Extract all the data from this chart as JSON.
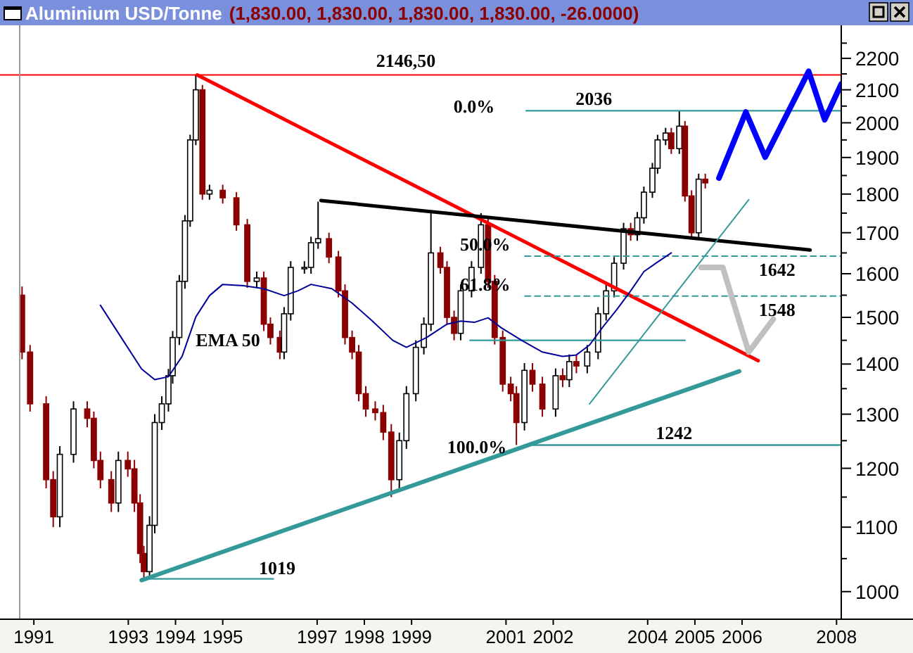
{
  "chart_data": {
    "type": "candlestick",
    "title": "Aluminium USD/Tonne",
    "subtitle": "(1,830.00, 1,830.00, 1,830.00, 1,830.00, -26.0000)",
    "log": true,
    "xlim": [
      1991.2,
      2008.6
    ],
    "ylim": [
      960,
      2310
    ],
    "xticks": [
      {
        "value": 1991.5,
        "label": "1991"
      },
      {
        "value": 1993.5,
        "label": "1993"
      },
      {
        "value": 1994.5,
        "label": "1994"
      },
      {
        "value": 1995.5,
        "label": "1995"
      },
      {
        "value": 1997.5,
        "label": "1997"
      },
      {
        "value": 1998.5,
        "label": "1998"
      },
      {
        "value": 1999.5,
        "label": "1999"
      },
      {
        "value": 2001.5,
        "label": "2001"
      },
      {
        "value": 2002.5,
        "label": "2002"
      },
      {
        "value": 2004.5,
        "label": "2004"
      },
      {
        "value": 2005.5,
        "label": "2005"
      },
      {
        "value": 2006.5,
        "label": "2006"
      },
      {
        "value": 2008.5,
        "label": "2008"
      }
    ],
    "yticks": [
      1000,
      {
        "value": 1050,
        "label": null
      },
      1100,
      {
        "value": 1150,
        "label": null
      },
      1200,
      {
        "value": 1250,
        "label": null
      },
      1300,
      {
        "value": 1350,
        "label": null
      },
      1400,
      {
        "value": 1450,
        "label": null
      },
      1500,
      {
        "value": 1550,
        "label": null
      },
      1600,
      {
        "value": 1650,
        "label": null
      },
      1700,
      {
        "value": 1750,
        "label": null
      },
      1800,
      {
        "value": 1850,
        "label": null
      },
      1900,
      {
        "value": 1950,
        "label": null
      },
      2000,
      {
        "value": 2050,
        "label": null
      },
      2100,
      {
        "value": 2150,
        "label": null
      },
      2200,
      {
        "value": 2250,
        "label": null
      }
    ],
    "x": [
      1991.25,
      1991.42,
      1991.76,
      1991.91,
      1992.05,
      1992.34,
      1992.63,
      1992.77,
      1992.91,
      1993.14,
      1993.29,
      1993.49,
      1993.63,
      1993.75,
      1993.83,
      1993.95,
      1994.06,
      1994.21,
      1994.35,
      1994.44,
      1994.58,
      1994.7,
      1994.81,
      1994.93,
      1995.07,
      1995.22,
      1995.5,
      1995.79,
      1996.02,
      1996.22,
      1996.37,
      1996.51,
      1996.71,
      1996.8,
      1996.94,
      1997.23,
      1997.37,
      1997.52,
      1997.75,
      1997.95,
      1998.09,
      1998.24,
      1998.38,
      1998.53,
      1998.73,
      1998.9,
      1999.07,
      1999.24,
      1999.39,
      1999.59,
      1999.76,
      1999.91,
      2000.11,
      2000.25,
      2000.4,
      2000.54,
      2000.77,
      2000.97,
      2001.12,
      2001.26,
      2001.43,
      2001.6,
      2001.72,
      2001.89,
      2002.06,
      2002.27,
      2002.55,
      2002.7,
      2002.84,
      2002.99,
      2003.22,
      2003.45,
      2003.62,
      2003.79,
      2003.99,
      2004.14,
      2004.28,
      2004.42,
      2004.6,
      2004.71,
      2004.88,
      2005.0,
      2005.17,
      2005.29,
      2005.43,
      2005.58,
      2005.72
    ],
    "ohlc": [
      [
        1550,
        1570,
        1410,
        1425
      ],
      [
        1425,
        1440,
        1305,
        1320
      ],
      [
        1320,
        1335,
        1165,
        1180
      ],
      [
        1180,
        1195,
        1100,
        1117
      ],
      [
        1117,
        1240,
        1100,
        1225
      ],
      [
        1225,
        1325,
        1210,
        1310
      ],
      [
        1310,
        1325,
        1275,
        1292
      ],
      [
        1292,
        1305,
        1200,
        1214
      ],
      [
        1214,
        1230,
        1165,
        1180
      ],
      [
        1180,
        1195,
        1125,
        1140
      ],
      [
        1140,
        1230,
        1125,
        1214
      ],
      [
        1214,
        1230,
        1185,
        1199
      ],
      [
        1199,
        1215,
        1125,
        1140
      ],
      [
        1140,
        1155,
        1043,
        1058
      ],
      [
        1058,
        1070,
        1019,
        1030
      ],
      [
        1030,
        1118,
        1019,
        1103
      ],
      [
        1103,
        1300,
        1090,
        1284
      ],
      [
        1284,
        1335,
        1270,
        1320
      ],
      [
        1320,
        1390,
        1305,
        1376
      ],
      [
        1376,
        1470,
        1360,
        1456
      ],
      [
        1456,
        1597,
        1440,
        1582
      ],
      [
        1582,
        1745,
        1565,
        1730
      ],
      [
        1730,
        1965,
        1715,
        1950
      ],
      [
        1950,
        2146.5,
        1935,
        2100
      ],
      [
        2100,
        2115,
        1785,
        1800
      ],
      [
        1800,
        1825,
        1785,
        1810
      ],
      [
        1810,
        1825,
        1775,
        1790
      ],
      [
        1790,
        1805,
        1705,
        1720
      ],
      [
        1720,
        1735,
        1567,
        1582
      ],
      [
        1582,
        1605,
        1567,
        1590
      ],
      [
        1590,
        1605,
        1470,
        1485
      ],
      [
        1485,
        1500,
        1441,
        1456
      ],
      [
        1456,
        1471,
        1410,
        1425
      ],
      [
        1425,
        1523,
        1410,
        1508
      ],
      [
        1508,
        1630,
        1493,
        1615
      ],
      [
        1615,
        1630,
        1600,
        1615
      ],
      [
        1615,
        1690,
        1600,
        1675
      ],
      [
        1675,
        1780,
        1660,
        1685
      ],
      [
        1685,
        1700,
        1625,
        1640
      ],
      [
        1640,
        1655,
        1545,
        1560
      ],
      [
        1560,
        1575,
        1441,
        1456
      ],
      [
        1456,
        1471,
        1410,
        1425
      ],
      [
        1425,
        1440,
        1325,
        1340
      ],
      [
        1340,
        1355,
        1295,
        1310
      ],
      [
        1310,
        1325,
        1288,
        1303
      ],
      [
        1303,
        1318,
        1251,
        1266
      ],
      [
        1266,
        1281,
        1150,
        1180
      ],
      [
        1180,
        1265,
        1165,
        1250
      ],
      [
        1250,
        1355,
        1235,
        1340
      ],
      [
        1340,
        1450,
        1325,
        1435
      ],
      [
        1435,
        1500,
        1420,
        1485
      ],
      [
        1485,
        1755,
        1470,
        1650
      ],
      [
        1650,
        1665,
        1600,
        1615
      ],
      [
        1615,
        1630,
        1485,
        1500
      ],
      [
        1500,
        1515,
        1450,
        1465
      ],
      [
        1465,
        1575,
        1450,
        1560
      ],
      [
        1560,
        1630,
        1545,
        1615
      ],
      [
        1615,
        1750,
        1600,
        1720
      ],
      [
        1720,
        1735,
        1567,
        1582
      ],
      [
        1582,
        1597,
        1441,
        1456
      ],
      [
        1456,
        1471,
        1344,
        1359
      ],
      [
        1359,
        1374,
        1325,
        1340
      ],
      [
        1340,
        1355,
        1242,
        1284
      ],
      [
        1284,
        1402,
        1269,
        1387
      ],
      [
        1387,
        1402,
        1344,
        1359
      ],
      [
        1359,
        1374,
        1295,
        1310
      ],
      [
        1310,
        1391,
        1295,
        1376
      ],
      [
        1376,
        1391,
        1353,
        1368
      ],
      [
        1368,
        1420,
        1353,
        1405
      ],
      [
        1405,
        1420,
        1381,
        1396
      ],
      [
        1396,
        1440,
        1381,
        1425
      ],
      [
        1425,
        1523,
        1410,
        1508
      ],
      [
        1508,
        1575,
        1493,
        1560
      ],
      [
        1560,
        1640,
        1545,
        1625
      ],
      [
        1625,
        1725,
        1610,
        1710
      ],
      [
        1710,
        1725,
        1680,
        1695
      ],
      [
        1695,
        1753,
        1680,
        1738
      ],
      [
        1738,
        1820,
        1723,
        1805
      ],
      [
        1805,
        1885,
        1790,
        1870
      ],
      [
        1870,
        1965,
        1855,
        1950
      ],
      [
        1950,
        1985,
        1935,
        1970
      ],
      [
        1970,
        1985,
        1910,
        1925
      ],
      [
        1925,
        2036,
        1910,
        1990
      ],
      [
        1990,
        2005,
        1780,
        1795
      ],
      [
        1795,
        1810,
        1685,
        1700
      ],
      [
        1700,
        1855,
        1685,
        1840
      ],
      [
        1840,
        1855,
        1815,
        1830
      ]
    ],
    "series": [
      {
        "type": "line",
        "color": "#ff0000",
        "x": [
          1994.96,
          2006.84
        ],
        "values": [
          2146.5,
          1407
        ]
      },
      {
        "type": "line",
        "color": "#000000",
        "x": [
          1997.58,
          2007.94
        ],
        "values": [
          1783,
          1657
        ]
      },
      {
        "type": "line",
        "color": "#339999",
        "x": [
          1993.78,
          2006.44
        ],
        "values": [
          1017,
          1385
        ]
      },
      {
        "type": "line",
        "color": "#339999",
        "x": [
          1993.78,
          1996.57
        ],
        "values": [
          1019,
          1019
        ]
      },
      {
        "type": "line",
        "color": "#339999",
        "x": [
          2003.27,
          2006.64
        ],
        "values": [
          1320,
          1785
        ]
      },
      {
        "type": "line",
        "color": "#339999",
        "x": [
          2000.74,
          2005.29
        ],
        "values": [
          1450,
          1450
        ]
      },
      {
        "type": "line",
        "color": "#339999",
        "x": [
          2001.89,
          2008.6
        ],
        "values": [
          1242,
          1242
        ]
      },
      {
        "type": "line",
        "color": "#339999",
        "x": [
          2001.93,
          2008.6
        ],
        "values": [
          2036,
          2036
        ]
      },
      {
        "type": "line",
        "color": "#339999",
        "line_style": "dashed",
        "x": [
          2001.9,
          2008.6
        ],
        "values": [
          1642,
          1642
        ]
      },
      {
        "type": "line",
        "color": "#339999",
        "line_style": "dashed",
        "x": [
          2001.9,
          2008.6
        ],
        "values": [
          1548,
          1548
        ]
      },
      {
        "type": "line",
        "color": "#000099",
        "x": [
          1992.91,
          1993.35,
          1993.78,
          1994.06,
          1994.35,
          1994.64,
          1994.93,
          1995.22,
          1995.5,
          1995.94,
          1996.37,
          1996.8,
          1997.09,
          1997.37,
          1997.81,
          1998.24,
          1998.67,
          1999.1,
          1999.39,
          1999.82,
          2000.25,
          2000.54,
          2000.83,
          2001.12,
          2001.4,
          2001.83,
          2002.27,
          2002.7,
          2002.99,
          2003.27,
          2003.56,
          2003.85,
          2004.14,
          2004.42,
          2004.71,
          2005.0
        ],
        "values": [
          1527,
          1456,
          1390,
          1368,
          1374,
          1416,
          1501,
          1549,
          1575,
          1572,
          1565,
          1549,
          1560,
          1575,
          1565,
          1532,
          1492,
          1450,
          1435,
          1456,
          1485,
          1492,
          1489,
          1499,
          1477,
          1450,
          1425,
          1416,
          1419,
          1440,
          1480,
          1518,
          1560,
          1605,
          1628,
          1650
        ]
      },
      {
        "type": "line",
        "color": "#0000ff",
        "x": [
          2006.01,
          2006.58,
          2006.99,
          2007.91,
          2008.25,
          2008.6
        ],
        "values": [
          1843,
          2032,
          1901,
          2158,
          2009,
          2118
        ]
      },
      {
        "type": "line",
        "color": "#c0c0c0",
        "x": [
          2005.63,
          2006.09,
          2006.64,
          2007.16
        ],
        "values": [
          1615,
          1615,
          1425,
          1496
        ]
      }
    ],
    "ref_lines": [
      {
        "axis": "y",
        "value": 2146.5,
        "label": "2146,50",
        "color": "#ff0000"
      }
    ],
    "annotations": [
      "0.0%",
      {
        "text": "2036",
        "x": 2003.36,
        "y": 2036
      },
      {
        "text": "50.0%",
        "x": 2001.06,
        "y": 1642
      },
      {
        "text": "1642",
        "x": 2007.24,
        "y": 1642
      },
      {
        "text": "61.8%",
        "x": 2001.06,
        "y": 1548
      },
      {
        "text": "1548",
        "x": 2007.24,
        "y": 1548
      },
      "100.0%",
      {
        "text": "1242",
        "x": 2005.06,
        "y": 1242
      },
      "1019",
      "EMA 50"
    ]
  }
}
